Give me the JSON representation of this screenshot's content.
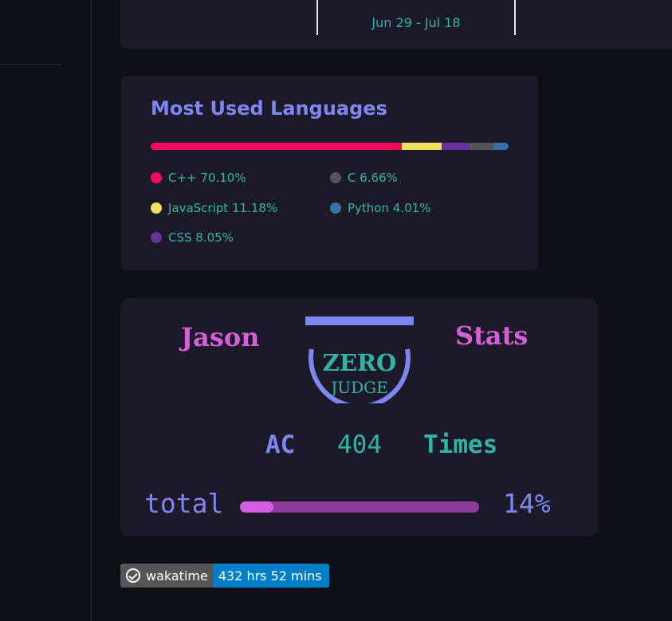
{
  "streak": {
    "date_range": "Jun 29 - Jul 18"
  },
  "languages": {
    "title": "Most Used Languages",
    "items": [
      {
        "name": "C++",
        "percent": 70.1,
        "label": "C++ 70.10%",
        "color": "#f50a5b"
      },
      {
        "name": "JavaScript",
        "percent": 11.18,
        "label": "JavaScript 11.18%",
        "color": "#f1e05a"
      },
      {
        "name": "CSS",
        "percent": 8.05,
        "label": "CSS 8.05%",
        "color": "#663399"
      },
      {
        "name": "C",
        "percent": 6.66,
        "label": "C 6.66%",
        "color": "#555555"
      },
      {
        "name": "Python",
        "percent": 4.01,
        "label": "Python 4.01%",
        "color": "#3572a5"
      }
    ]
  },
  "judge": {
    "name": "Jason",
    "stats_label": "Stats",
    "logo_line1": "ZERO",
    "logo_line2": "JUDGE",
    "ac_label": "AC",
    "ac_count": "404",
    "times_label": "Times",
    "total_label": "total",
    "total_percent": 14,
    "total_percent_text": "14%"
  },
  "badge": {
    "icon": "wakatime-check-icon",
    "label": "wakatime",
    "value": "432 hrs 52 mins"
  },
  "colors": {
    "background": "#0d1017",
    "card": "#1c1a29",
    "accent_blue": "#7c87f2",
    "accent_teal": "#30b5a5",
    "accent_pink": "#d55fd8",
    "badge_blue": "#007ec6"
  }
}
